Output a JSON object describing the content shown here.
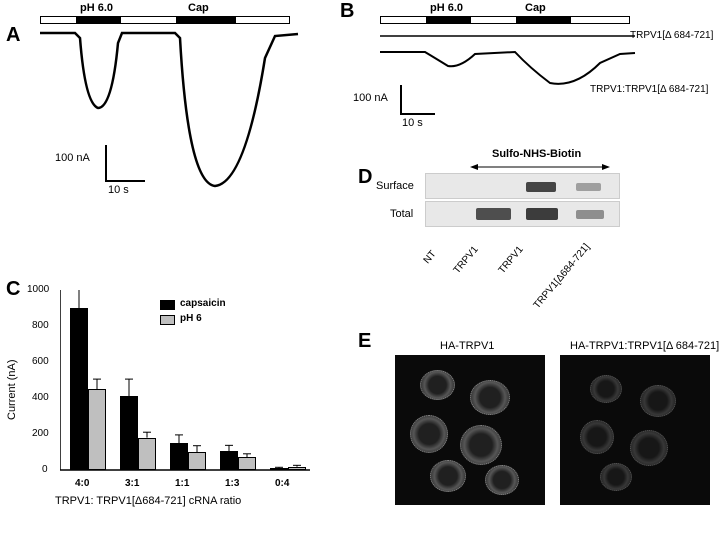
{
  "panelA": {
    "label": "A",
    "stim1_label": "pH 6.0",
    "stim2_label": "Cap",
    "scale_y_text": "100 nA",
    "scale_x_text": "10 s"
  },
  "panelB": {
    "label": "B",
    "stim1_label": "pH 6.0",
    "stim2_label": "Cap",
    "scale_y_text": "100 nA",
    "scale_x_text": "10 s",
    "trace1_label": "TRPV1[Δ 684-721]",
    "trace2_label": "TRPV1:TRPV1[Δ 684-721]"
  },
  "panelC": {
    "label": "C",
    "ylabel": "Current (nA)",
    "xlabel": "TRPV1: TRPV1[Δ684-721] cRNA ratio",
    "legend_cap": "capsaicin",
    "legend_ph": "pH 6",
    "categories": [
      "4:0",
      "3:1",
      "1:1",
      "1:3",
      "0:4"
    ],
    "cap_values": [
      900,
      410,
      150,
      105,
      10
    ],
    "cap_errors": [
      105,
      95,
      45,
      32,
      5
    ],
    "ph_values": [
      450,
      180,
      100,
      70,
      18
    ],
    "ph_errors": [
      55,
      30,
      35,
      20,
      8
    ],
    "yticks": [
      0,
      200,
      400,
      600,
      800,
      1000
    ],
    "ylim": 1000,
    "cap_color": "#000000",
    "ph_color": "#bfbfbf",
    "chart_bg": "#ffffff"
  },
  "panelD": {
    "label": "D",
    "row1_label": "Surface",
    "row2_label": "Total",
    "header_label": "Sulfo-NHS-Biotin",
    "lane_labels": [
      "NT",
      "TRPV1",
      "TRPV1",
      "TRPV1[Δ684-721]"
    ]
  },
  "panelE": {
    "label": "E",
    "img1_label": "HA-TRPV1",
    "img2_label": "HA-TRPV1:TRPV1[Δ 684-721]"
  }
}
